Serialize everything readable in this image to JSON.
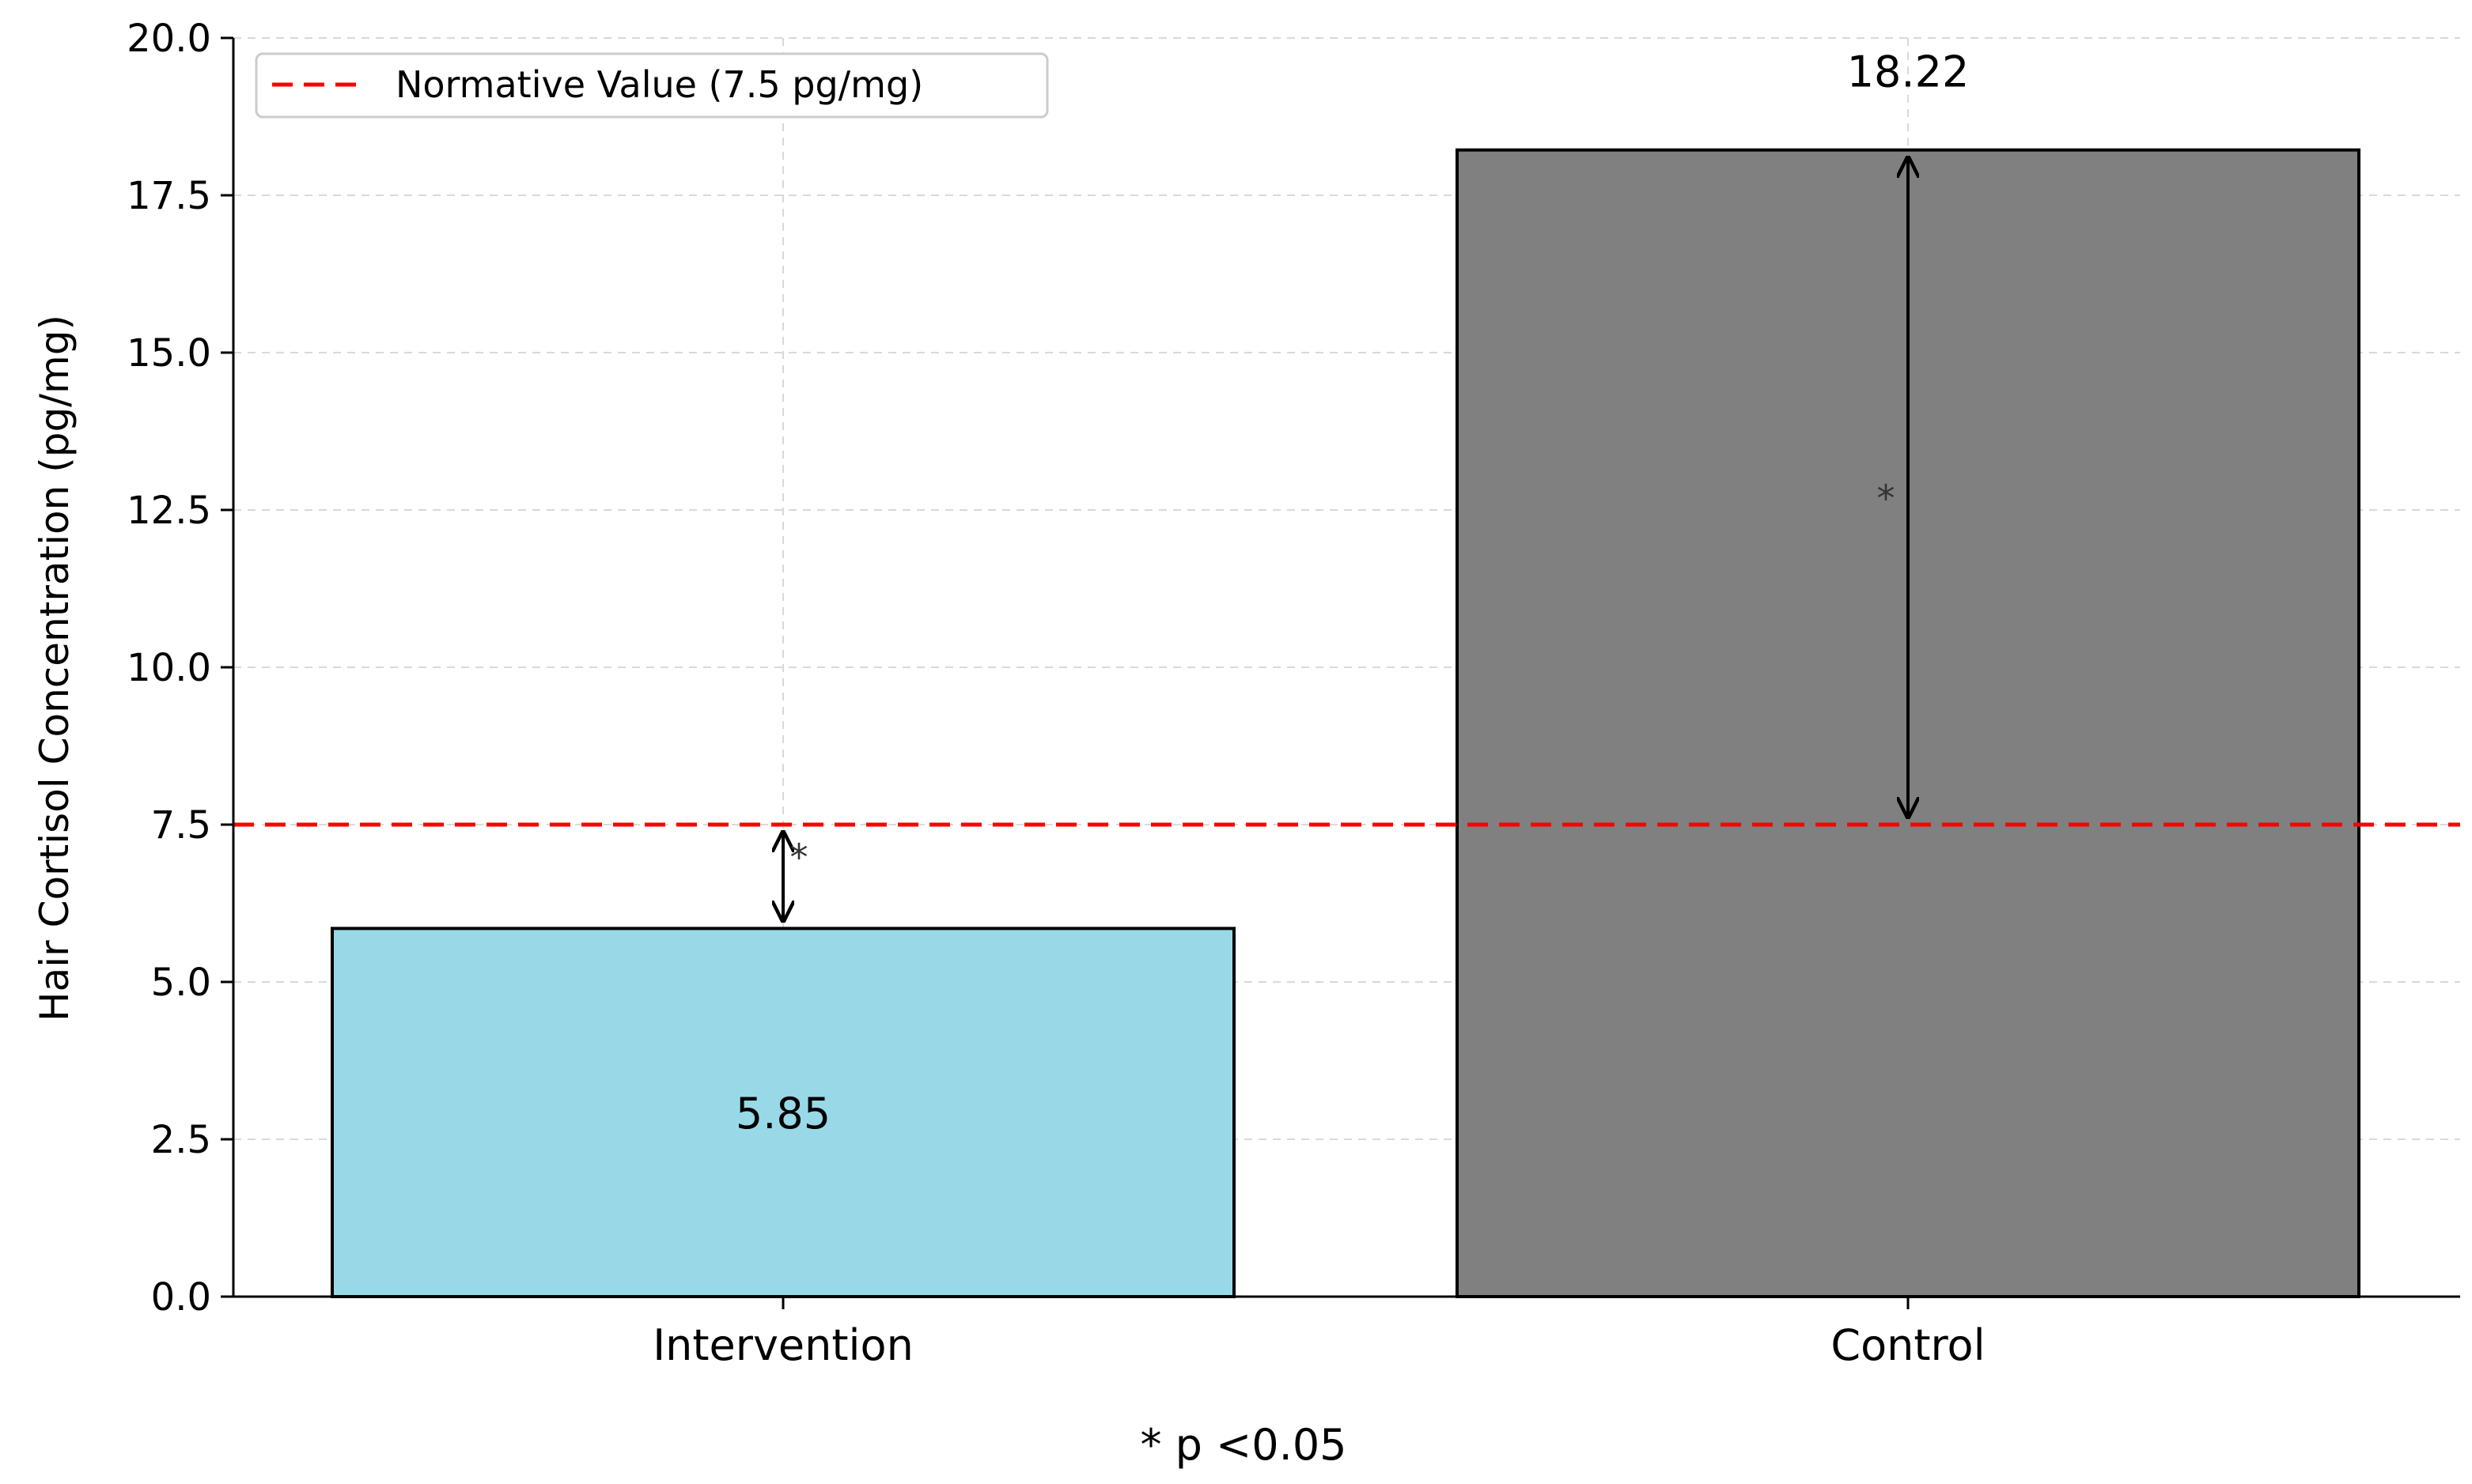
{
  "chart_data": {
    "type": "bar",
    "categories": [
      "Intervention",
      "Control"
    ],
    "values": [
      5.85,
      18.22
    ],
    "value_labels": [
      "5.85",
      "18.22"
    ],
    "colors": [
      "#99d9e7",
      "#808080"
    ],
    "title": "",
    "xlabel": "",
    "ylabel": "Hair Cortisol Concentration (pg/mg)",
    "ylim": [
      0,
      20
    ],
    "yticks": [
      0,
      2.5,
      5,
      7.5,
      10,
      12.5,
      15,
      17.5,
      20
    ],
    "ytick_labels": [
      "0.0",
      "2.5",
      "5.0",
      "7.5",
      "10.0",
      "12.5",
      "15.0",
      "17.5",
      "20.0"
    ],
    "grid": true,
    "reference_line": {
      "value": 7.5,
      "label": "Normative Value (7.5 pg/mg)",
      "color": "#ff0000"
    },
    "legend": {
      "placement": "top-left",
      "entries": [
        "Normative Value (7.5 pg/mg)"
      ]
    },
    "annotations": [
      {
        "category": "Intervention",
        "from": 5.85,
        "to": 7.5,
        "marker": "*"
      },
      {
        "category": "Control",
        "from": 7.5,
        "to": 18.22,
        "marker": "*"
      }
    ],
    "footnote": "* p <0.05"
  }
}
